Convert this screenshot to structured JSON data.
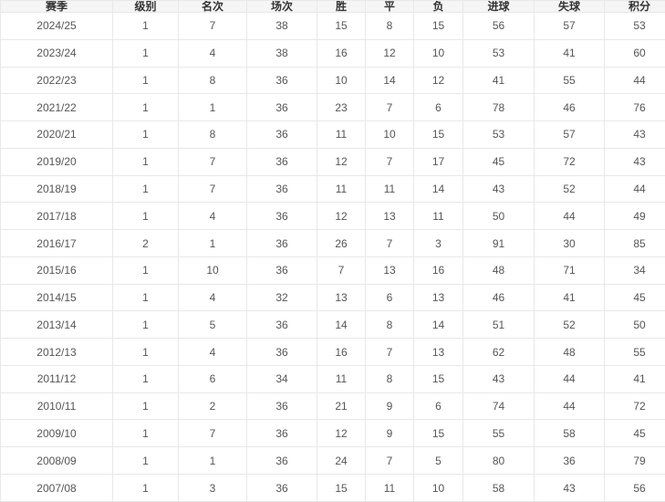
{
  "colors": {
    "header_bg": "#f5f5f5",
    "row_bg": "#ffffff",
    "border": "#e8e8e8",
    "header_text": "#333333",
    "body_text": "#555555"
  },
  "chart_data": {
    "type": "table",
    "title": "",
    "columns": [
      {
        "key": "season",
        "label": "赛季"
      },
      {
        "key": "level",
        "label": "级别"
      },
      {
        "key": "rank",
        "label": "名次"
      },
      {
        "key": "matches",
        "label": "场次"
      },
      {
        "key": "wins",
        "label": "胜"
      },
      {
        "key": "draws",
        "label": "平"
      },
      {
        "key": "losses",
        "label": "负"
      },
      {
        "key": "goals-for",
        "label": "进球"
      },
      {
        "key": "goals-against",
        "label": "失球"
      },
      {
        "key": "points",
        "label": "积分"
      }
    ],
    "rows": [
      [
        "2024/25",
        "1",
        "7",
        "38",
        "15",
        "8",
        "15",
        "56",
        "57",
        "53"
      ],
      [
        "2023/24",
        "1",
        "4",
        "38",
        "16",
        "12",
        "10",
        "53",
        "41",
        "60"
      ],
      [
        "2022/23",
        "1",
        "8",
        "36",
        "10",
        "14",
        "12",
        "41",
        "55",
        "44"
      ],
      [
        "2021/22",
        "1",
        "1",
        "36",
        "23",
        "7",
        "6",
        "78",
        "46",
        "76"
      ],
      [
        "2020/21",
        "1",
        "8",
        "36",
        "11",
        "10",
        "15",
        "53",
        "57",
        "43"
      ],
      [
        "2019/20",
        "1",
        "7",
        "36",
        "12",
        "7",
        "17",
        "45",
        "72",
        "43"
      ],
      [
        "2018/19",
        "1",
        "7",
        "36",
        "11",
        "11",
        "14",
        "43",
        "52",
        "44"
      ],
      [
        "2017/18",
        "1",
        "4",
        "36",
        "12",
        "13",
        "11",
        "50",
        "44",
        "49"
      ],
      [
        "2016/17",
        "2",
        "1",
        "36",
        "26",
        "7",
        "3",
        "91",
        "30",
        "85"
      ],
      [
        "2015/16",
        "1",
        "10",
        "36",
        "7",
        "13",
        "16",
        "48",
        "71",
        "34"
      ],
      [
        "2014/15",
        "1",
        "4",
        "32",
        "13",
        "6",
        "13",
        "46",
        "41",
        "45"
      ],
      [
        "2013/14",
        "1",
        "5",
        "36",
        "14",
        "8",
        "14",
        "51",
        "52",
        "50"
      ],
      [
        "2012/13",
        "1",
        "4",
        "36",
        "16",
        "7",
        "13",
        "62",
        "48",
        "55"
      ],
      [
        "2011/12",
        "1",
        "6",
        "34",
        "11",
        "8",
        "15",
        "43",
        "44",
        "41"
      ],
      [
        "2010/11",
        "1",
        "2",
        "36",
        "21",
        "9",
        "6",
        "74",
        "44",
        "72"
      ],
      [
        "2009/10",
        "1",
        "7",
        "36",
        "12",
        "9",
        "15",
        "55",
        "58",
        "45"
      ],
      [
        "2008/09",
        "1",
        "1",
        "36",
        "24",
        "7",
        "5",
        "80",
        "36",
        "79"
      ],
      [
        "2007/08",
        "1",
        "3",
        "36",
        "15",
        "11",
        "10",
        "58",
        "43",
        "56"
      ]
    ]
  }
}
